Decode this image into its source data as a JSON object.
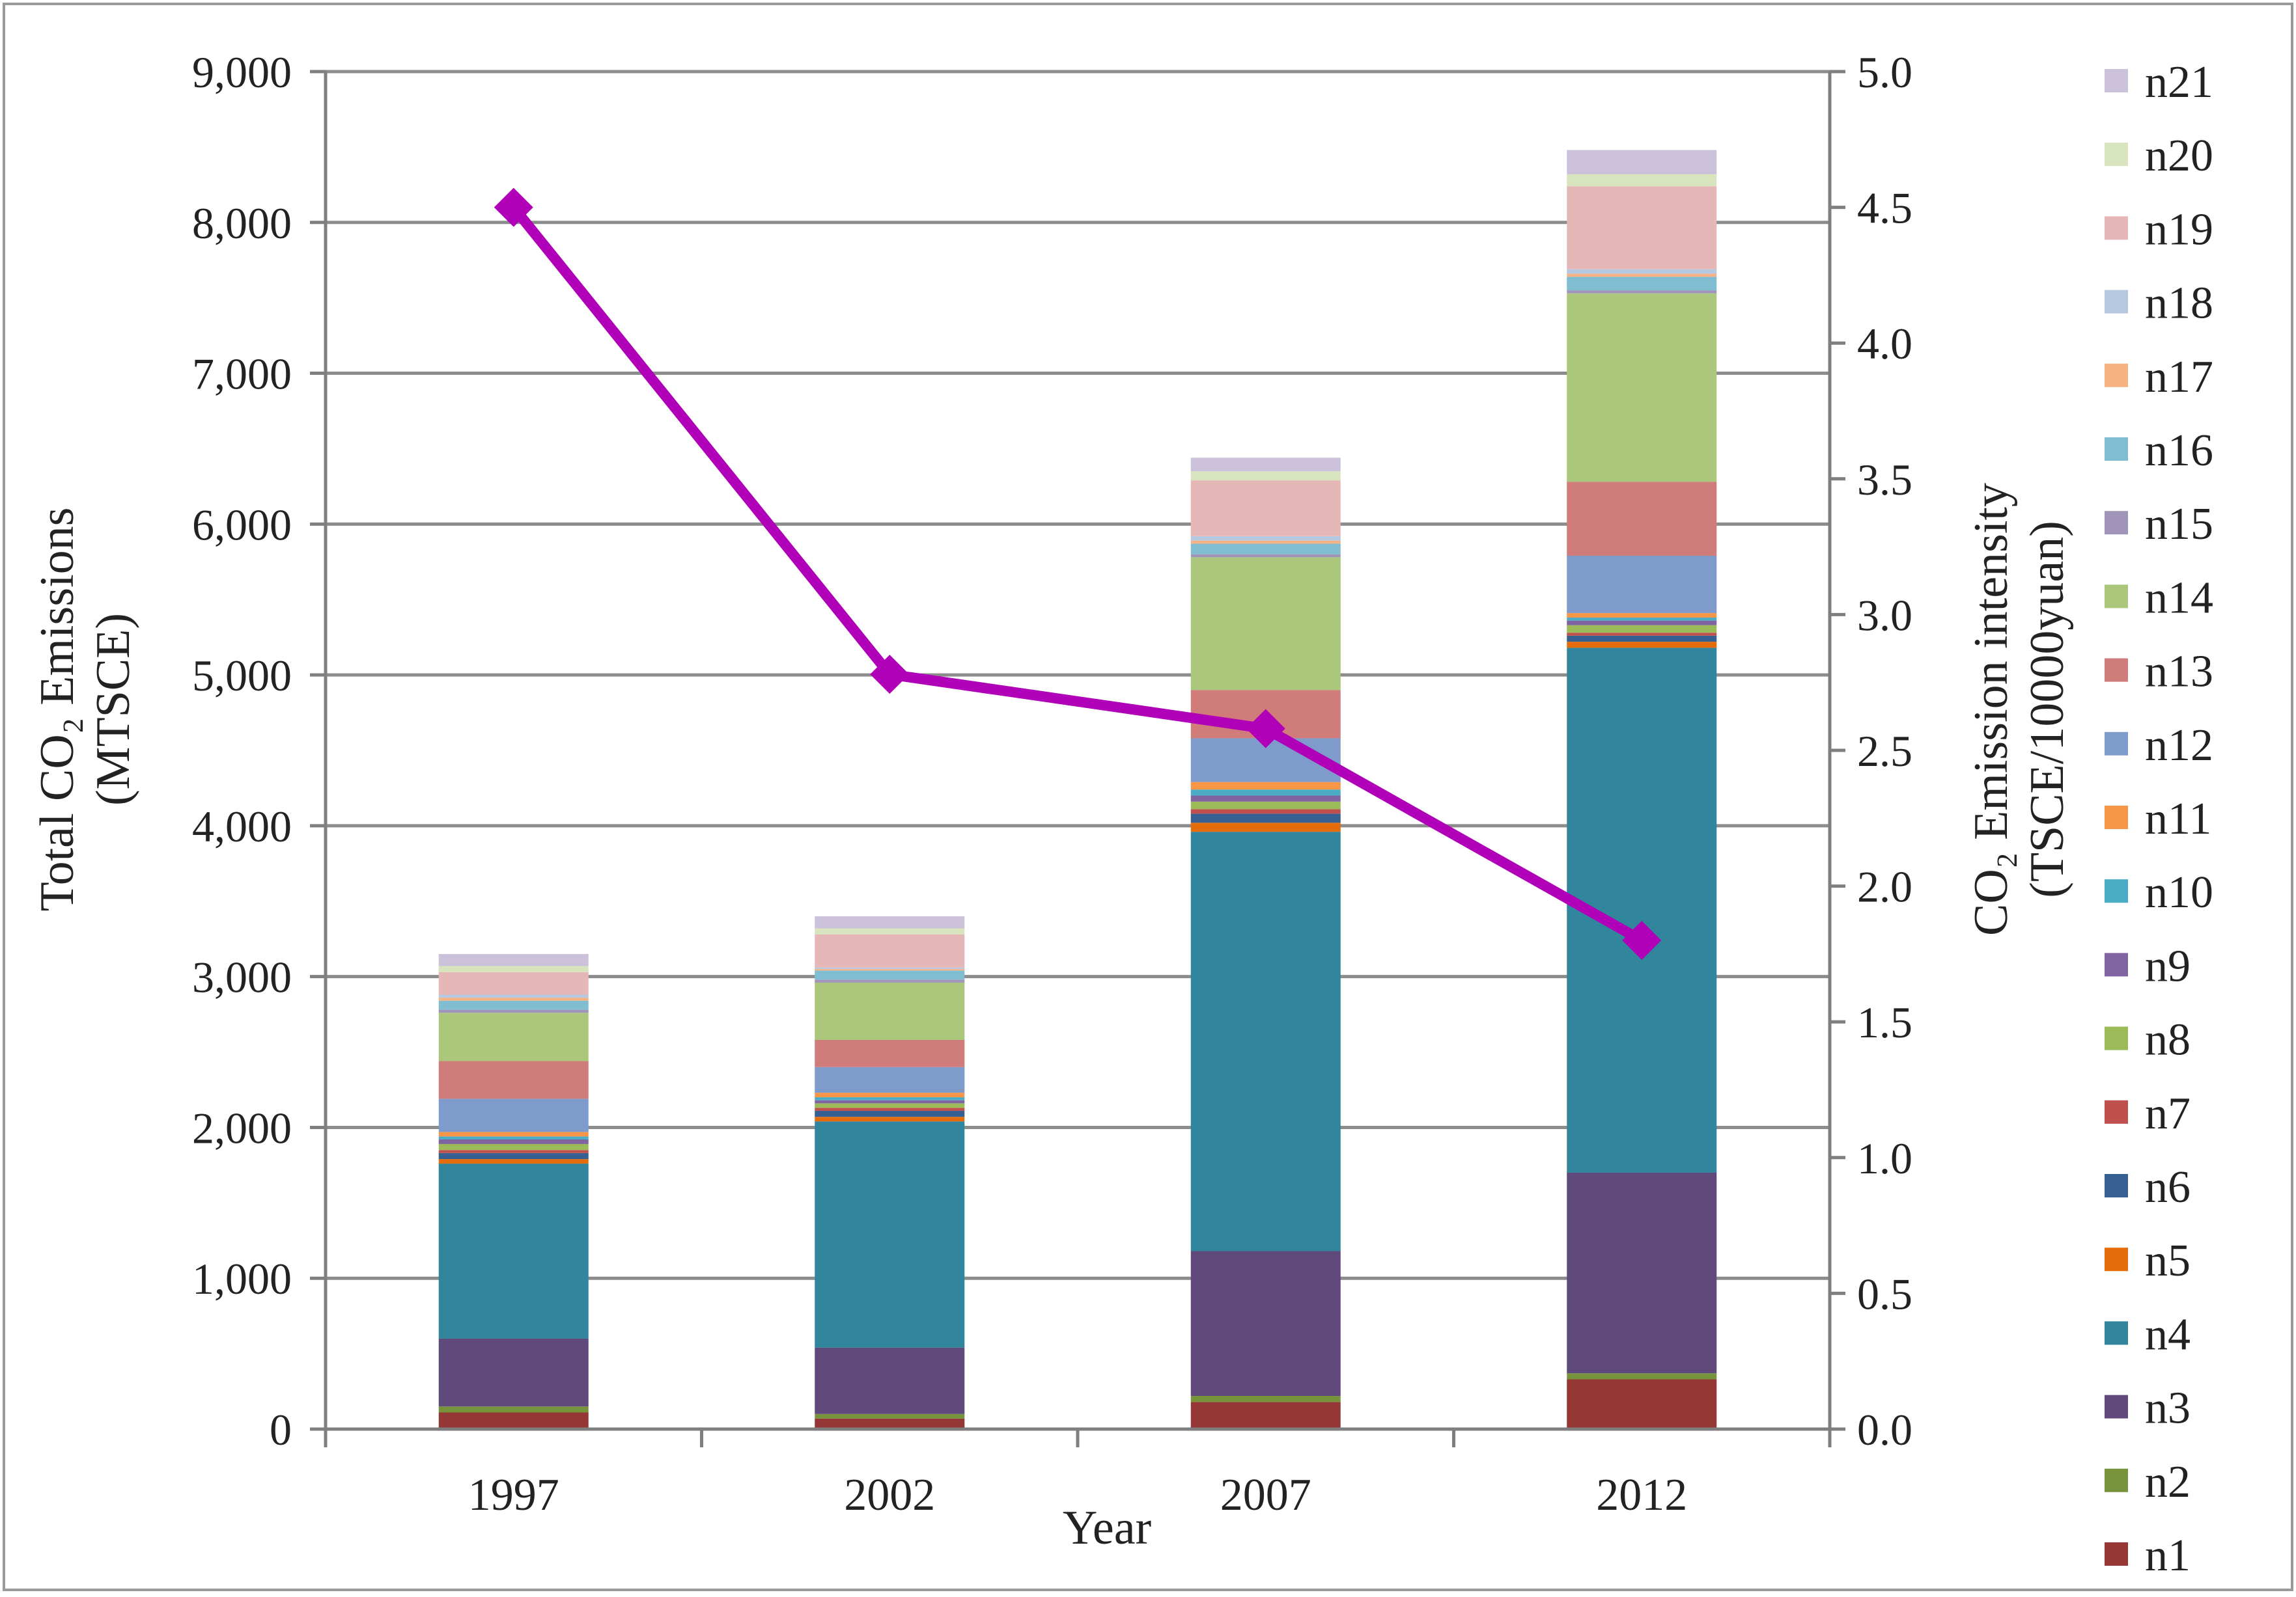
{
  "chart_data": {
    "type": "bar",
    "stacked": true,
    "categories": [
      "1997",
      "2002",
      "2007",
      "2012"
    ],
    "xlabel": "Year",
    "ylabel_lines": [
      "Total CO₂ Emissions",
      "(MTSCE)"
    ],
    "y2label_lines": [
      "CO₂ Emission intensity",
      "(TSCE/10000yuan)"
    ],
    "ylim": [
      0,
      9000
    ],
    "y2lim": [
      0,
      5.0
    ],
    "yticks": [
      0,
      1000,
      2000,
      3000,
      4000,
      5000,
      6000,
      7000,
      8000,
      9000
    ],
    "ytick_labels": [
      "0",
      "1,000",
      "2,000",
      "3,000",
      "4,000",
      "5,000",
      "6,000",
      "7,000",
      "8,000",
      "9,000"
    ],
    "y2ticks": [
      0,
      0.5,
      1.0,
      1.5,
      2.0,
      2.5,
      3.0,
      3.5,
      4.0,
      4.5,
      5.0
    ],
    "y2tick_labels": [
      "0.0",
      "0.5",
      "1.0",
      "1.5",
      "2.0",
      "2.5",
      "3.0",
      "3.5",
      "4.0",
      "4.5",
      "5.0"
    ],
    "grid": true,
    "legend_position": "right",
    "series": [
      {
        "name": "n1",
        "color": "#953735",
        "values": [
          110,
          70,
          180,
          330
        ]
      },
      {
        "name": "n2",
        "color": "#77933C",
        "values": [
          40,
          30,
          40,
          40
        ]
      },
      {
        "name": "n3",
        "color": "#604A7B",
        "values": [
          450,
          440,
          960,
          1330
        ]
      },
      {
        "name": "n4",
        "color": "#31859C",
        "values": [
          1160,
          1500,
          2780,
          3480
        ]
      },
      {
        "name": "n5",
        "color": "#E46C0A",
        "values": [
          30,
          30,
          60,
          40
        ]
      },
      {
        "name": "n6",
        "color": "#376092",
        "values": [
          40,
          40,
          60,
          40
        ]
      },
      {
        "name": "n7",
        "color": "#C0504D",
        "values": [
          20,
          20,
          30,
          20
        ]
      },
      {
        "name": "n8",
        "color": "#9BBB59",
        "values": [
          40,
          30,
          50,
          50
        ]
      },
      {
        "name": "n9",
        "color": "#8064A2",
        "values": [
          30,
          20,
          40,
          30
        ]
      },
      {
        "name": "n10",
        "color": "#4BACC6",
        "values": [
          20,
          20,
          40,
          20
        ]
      },
      {
        "name": "n11",
        "color": "#F79646",
        "values": [
          30,
          30,
          50,
          30
        ]
      },
      {
        "name": "n12",
        "color": "#7F9BCB",
        "values": [
          220,
          170,
          290,
          380
        ]
      },
      {
        "name": "n13",
        "color": "#D07C7A",
        "values": [
          250,
          180,
          320,
          490
        ]
      },
      {
        "name": "n14",
        "color": "#ABC77B",
        "values": [
          320,
          380,
          880,
          1250
        ]
      },
      {
        "name": "n15",
        "color": "#A194B9",
        "values": [
          20,
          20,
          20,
          20
        ]
      },
      {
        "name": "n16",
        "color": "#80BDD0",
        "values": [
          60,
          60,
          70,
          90
        ]
      },
      {
        "name": "n17",
        "color": "#F7B283",
        "values": [
          20,
          10,
          20,
          20
        ]
      },
      {
        "name": "n18",
        "color": "#B7C8E1",
        "values": [
          20,
          10,
          30,
          30
        ]
      },
      {
        "name": "n19",
        "color": "#E5B8B7",
        "values": [
          150,
          220,
          370,
          550
        ]
      },
      {
        "name": "n20",
        "color": "#D7E4BD",
        "values": [
          40,
          40,
          60,
          80
        ]
      },
      {
        "name": "n21",
        "color": "#CCC1DA",
        "values": [
          80,
          80,
          90,
          160
        ]
      }
    ],
    "line_series": {
      "name": "CO₂ Emission intensity",
      "axis": "right",
      "color": "#B000B8",
      "values": [
        4.5,
        2.78,
        2.58,
        1.8
      ]
    }
  }
}
